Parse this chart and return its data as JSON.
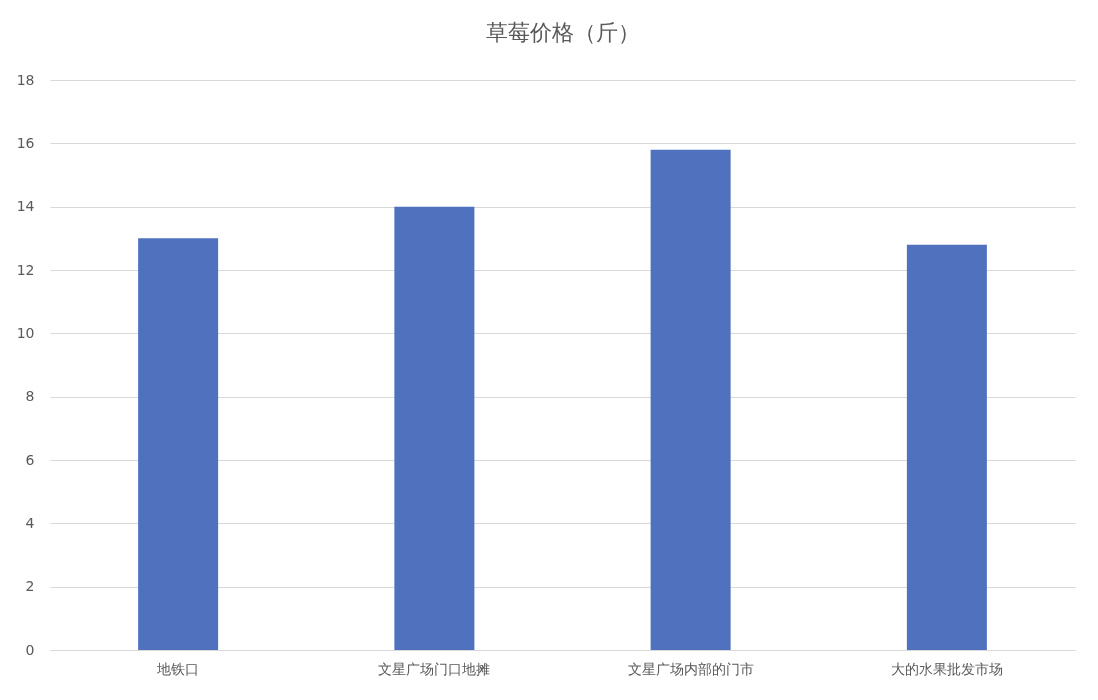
{
  "chart_data": {
    "type": "bar",
    "title": "草莓价格（斤）",
    "categories": [
      "地铁口",
      "文星广场门口地摊",
      "文星广场内部的门市",
      "大的水果批发市场"
    ],
    "values": [
      13,
      14,
      15.8,
      12.8
    ],
    "color": "#4f71be",
    "ylim": [
      0,
      18
    ],
    "yticks": [
      0,
      2,
      4,
      6,
      8,
      10,
      12,
      14,
      16,
      18
    ],
    "grid": "y"
  }
}
